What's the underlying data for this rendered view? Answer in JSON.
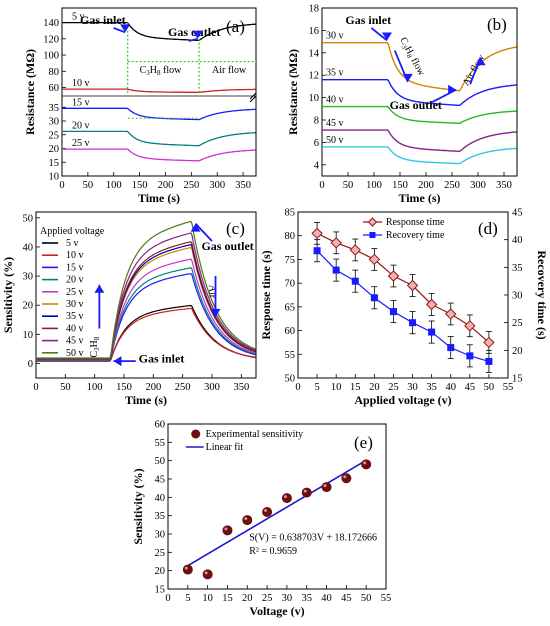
{
  "chart_data": [
    {
      "id": "a",
      "type": "line",
      "panel_label": "(a)",
      "xlabel": "Time (s)",
      "ylabel": "Resistance (MΩ)",
      "xlim": [
        0,
        375
      ],
      "x_ticks": [
        "0",
        "50",
        "100",
        "150",
        "200",
        "250",
        "300",
        "350"
      ],
      "upper": {
        "ylim": [
          52,
          158
        ],
        "tick_values": [
          60,
          80,
          100,
          120,
          140
        ],
        "tick_labels": [
          "60",
          "80",
          "100",
          "120",
          "140"
        ]
      },
      "lower": {
        "ylim": [
          10,
          38
        ],
        "tick_values": [
          10,
          15,
          20,
          25,
          30,
          35
        ],
        "tick_labels": [
          "10",
          "15",
          "20",
          "25",
          "30",
          "35"
        ]
      },
      "annotations": {
        "gas_inlet": "Gas inlet",
        "gas_outlet": "Gas outlet",
        "c3h8_flow": "C₃H₈ flow",
        "air_flow": "Air flow"
      },
      "series": [
        {
          "name": "5 v",
          "panel": "upper",
          "color": "#000000",
          "base": 140,
          "low": 118
        },
        {
          "name": "10 v",
          "panel": "upper",
          "color": "#cc2222",
          "base": 58,
          "low": 54
        },
        {
          "name": "15 v",
          "panel": "lower",
          "color": "#1a1aff",
          "base": 34.6,
          "low": 30.5
        },
        {
          "name": "20 v",
          "panel": "lower",
          "color": "#008080",
          "base": 26.2,
          "low": 21
        },
        {
          "name": "25 v",
          "panel": "lower",
          "color": "#cc33cc",
          "base": 19.8,
          "low": 15.5
        }
      ]
    },
    {
      "id": "b",
      "type": "line",
      "panel_label": "(b)",
      "xlabel": "Time (s)",
      "ylabel": "Resistance (MΩ)",
      "xlim": [
        0,
        375
      ],
      "ylim": [
        3,
        18
      ],
      "x_ticks": [
        "0",
        "50",
        "100",
        "150",
        "200",
        "250",
        "300",
        "350"
      ],
      "y_ticks": [
        "4",
        "6",
        "8",
        "10",
        "12",
        "14",
        "16",
        "18"
      ],
      "annotations": {
        "gas_inlet": "Gas inlet",
        "gas_outlet": "Gas outlet",
        "c3h8_flow": "C₃H₈ flow",
        "air_flow": "Air flow"
      },
      "series": [
        {
          "name": "30 v",
          "color": "#cc8800",
          "base": 14.9,
          "low": 10.6,
          "end": 14.9
        },
        {
          "name": "35 v",
          "color": "#1a1aff",
          "base": 11.6,
          "low": 9.3,
          "end": 11.3
        },
        {
          "name": "40 v",
          "color": "#22bb22",
          "base": 9.2,
          "low": 7.7,
          "end": 8.9
        },
        {
          "name": "45 v",
          "color": "#882288",
          "base": 7.1,
          "low": 5.2,
          "end": 7.1
        },
        {
          "name": "50 v",
          "color": "#33c8e0",
          "base": 5.6,
          "low": 4.1,
          "end": 5.6
        }
      ]
    },
    {
      "id": "c",
      "type": "line",
      "panel_label": "(c)",
      "xlabel": "Time (s)",
      "ylabel": "Sensitivity (%)",
      "xlim": [
        0,
        375
      ],
      "ylim": [
        -5,
        52
      ],
      "x_ticks": [
        "0",
        "50",
        "100",
        "150",
        "200",
        "250",
        "300",
        "350"
      ],
      "y_ticks": [
        "0",
        "10",
        "20",
        "30",
        "40",
        "50"
      ],
      "legend_title": "Applied voltage",
      "annotations": {
        "gas_inlet": "Gas inlet",
        "gas_outlet": "Gas outlet",
        "c3h8": "C₃H₈",
        "air": "Air"
      },
      "series": [
        {
          "name": "5 v",
          "color": "#000000",
          "peak": 20
        },
        {
          "name": "10 v",
          "color": "#cc2222",
          "peak": 19
        },
        {
          "name": "15 v",
          "color": "#1a1aff",
          "peak": 31
        },
        {
          "name": "20 v",
          "color": "#008080",
          "peak": 33
        },
        {
          "name": "25 v",
          "color": "#cc33cc",
          "peak": 36
        },
        {
          "name": "30 v",
          "color": "#cc8800",
          "peak": 40
        },
        {
          "name": "35 v",
          "color": "#0000aa",
          "peak": 41
        },
        {
          "name": "40 v",
          "color": "#882222",
          "peak": 42
        },
        {
          "name": "45 v",
          "color": "#882288",
          "peak": 45
        },
        {
          "name": "50 v",
          "color": "#4a7a1a",
          "peak": 49
        }
      ]
    },
    {
      "id": "d",
      "type": "line",
      "panel_label": "(d)",
      "xlabel": "Applied voltage (v)",
      "ylabel": "Response time (s)",
      "ylabel_right": "Recovery time (s)",
      "xlim": [
        0,
        55
      ],
      "ylim": [
        50,
        85
      ],
      "ylim_right": [
        15,
        45
      ],
      "x_ticks": [
        "0",
        "5",
        "10",
        "15",
        "20",
        "25",
        "30",
        "35",
        "40",
        "45",
        "50",
        "55"
      ],
      "y_ticks": [
        "50",
        "55",
        "60",
        "65",
        "70",
        "75",
        "80",
        "85"
      ],
      "y_ticks_right": [
        "15",
        "20",
        "25",
        "30",
        "35",
        "40",
        "45"
      ],
      "legend": [
        "Response time",
        "Recovery time"
      ],
      "x": [
        5,
        10,
        15,
        20,
        25,
        30,
        35,
        40,
        45,
        50
      ],
      "series": [
        {
          "name": "Response time",
          "axis": "left",
          "color": "#8b1a1a",
          "values": [
            80.5,
            78.5,
            77,
            75,
            71.5,
            69.5,
            65.5,
            63.5,
            61,
            57.5
          ],
          "error": 2.3
        },
        {
          "name": "Recovery time",
          "axis": "right",
          "color": "#1a1aff",
          "values": [
            38,
            34.5,
            32.5,
            29.5,
            27,
            25,
            23.3,
            20.5,
            19,
            18
          ],
          "error": 2.0
        }
      ]
    },
    {
      "id": "e",
      "type": "scatter",
      "panel_label": "(e)",
      "xlabel": "Voltage (v)",
      "ylabel": "Sensitivity (%)",
      "xlim": [
        0,
        55
      ],
      "ylim": [
        15,
        60
      ],
      "x_ticks": [
        "0",
        "5",
        "10",
        "15",
        "20",
        "25",
        "30",
        "35",
        "40",
        "45",
        "50",
        "55"
      ],
      "y_ticks": [
        "15",
        "20",
        "25",
        "30",
        "35",
        "40",
        "45",
        "50",
        "55",
        "60"
      ],
      "legend": [
        "Experimental sensitivity",
        "Linear fit"
      ],
      "x": [
        5,
        10,
        15,
        20,
        25,
        30,
        35,
        40,
        45,
        50
      ],
      "series": [
        {
          "name": "Experimental sensitivity",
          "color": "#6b0f0f",
          "values": [
            20.3,
            19,
            31,
            33.8,
            36,
            39.8,
            41.3,
            42.8,
            45.2,
            49
          ]
        }
      ],
      "fit": {
        "slope": 0.638703,
        "intercept": 18.172666,
        "color": "#1a1acc"
      },
      "equation_text": "S(V) = 0.638703V + 18.172666",
      "r2_text": "R² = 0.9659"
    }
  ]
}
